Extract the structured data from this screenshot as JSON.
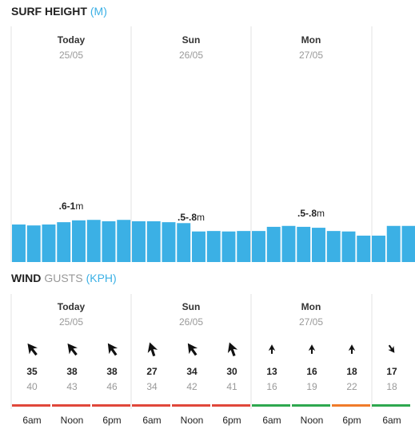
{
  "surf": {
    "title": "SURF HEIGHT",
    "unit": "(M)",
    "days": [
      {
        "name": "Today",
        "date": "25/05",
        "range": ".6-1",
        "unit": "m"
      },
      {
        "name": "Sun",
        "date": "26/05",
        "range": ".5-.8",
        "unit": "m"
      },
      {
        "name": "Mon",
        "date": "27/05",
        "range": ".5-.8",
        "unit": "m"
      }
    ]
  },
  "chart_data": {
    "type": "bar",
    "color": "#3bb0e5",
    "ylim": [
      0,
      5
    ],
    "values": [
      0.81,
      0.79,
      0.81,
      0.86,
      0.9,
      0.91,
      0.88,
      0.91,
      0.88,
      0.88,
      0.86,
      0.84,
      0.66,
      0.67,
      0.66,
      0.67,
      0.67,
      0.76,
      0.78,
      0.76,
      0.74,
      0.67,
      0.66,
      0.57,
      0.57,
      0.78,
      0.78
    ]
  },
  "wind": {
    "title": "WIND",
    "subtitle": "GUSTS",
    "unit": "(KPH)",
    "days": [
      {
        "name": "Today",
        "date": "25/05"
      },
      {
        "name": "Sun",
        "date": "26/05"
      },
      {
        "name": "Mon",
        "date": "27/05"
      }
    ],
    "slots": [
      {
        "time": "6am",
        "speed": 35,
        "gust": 40,
        "direction": -38,
        "color": "#e0473a"
      },
      {
        "time": "Noon",
        "speed": 38,
        "gust": 43,
        "direction": -38,
        "color": "#e0473a"
      },
      {
        "time": "6pm",
        "speed": 38,
        "gust": 46,
        "direction": -35,
        "color": "#e0473a"
      },
      {
        "time": "6am",
        "speed": 27,
        "gust": 34,
        "direction": -18,
        "color": "#e0473a"
      },
      {
        "time": "Noon",
        "speed": 34,
        "gust": 42,
        "direction": -35,
        "color": "#e0473a"
      },
      {
        "time": "6pm",
        "speed": 30,
        "gust": 41,
        "direction": -20,
        "color": "#e0473a"
      },
      {
        "time": "6am",
        "speed": 13,
        "gust": 16,
        "direction": 0,
        "color": "#2ea84f"
      },
      {
        "time": "Noon",
        "speed": 16,
        "gust": 19,
        "direction": 0,
        "color": "#2ea84f"
      },
      {
        "time": "6pm",
        "speed": 18,
        "gust": 22,
        "direction": 0,
        "color": "#f07b2a"
      },
      {
        "time": "6am",
        "speed": 17,
        "gust": 18,
        "direction": 145,
        "color": "#2ea84f"
      }
    ]
  }
}
